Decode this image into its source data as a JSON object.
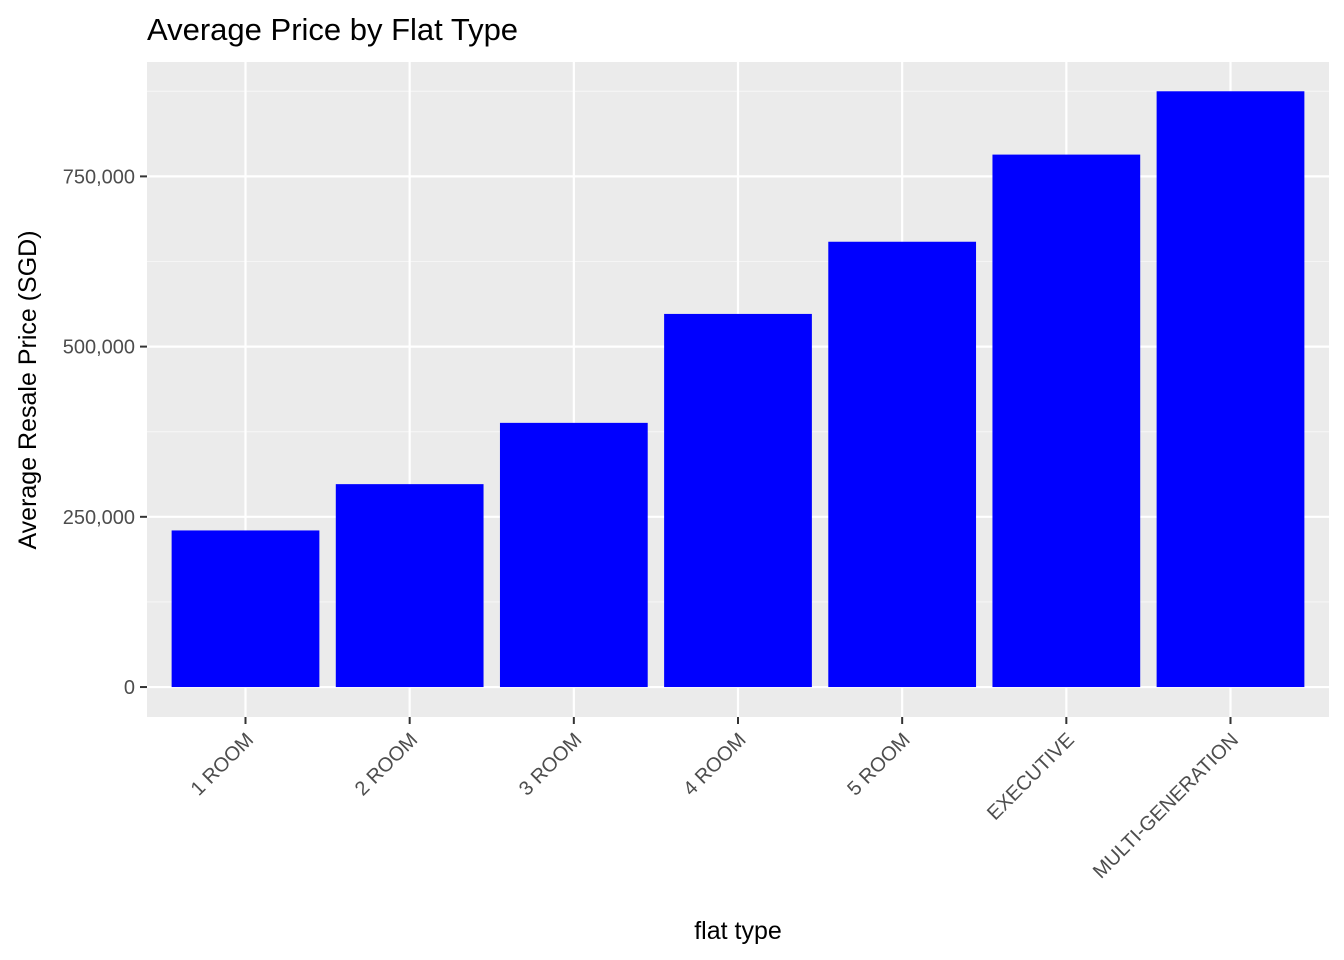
{
  "chart_data": {
    "type": "bar",
    "title": "Average Price by Flat Type",
    "xlabel": "flat type",
    "ylabel": "Average Resale Price (SGD)",
    "categories": [
      "1 ROOM",
      "2 ROOM",
      "3 ROOM",
      "4 ROOM",
      "5 ROOM",
      "EXECUTIVE",
      "MULTI-GENERATION"
    ],
    "values": [
      230000,
      298000,
      388000,
      548000,
      654000,
      782000,
      875000
    ],
    "ylim": [
      -44000,
      918000
    ],
    "yticks": [
      0,
      250000,
      500000,
      750000
    ],
    "ytick_labels": [
      "0",
      "250,000",
      "500,000",
      "750,000"
    ],
    "grid": true,
    "x_tick_rotation_deg": 45,
    "colors": {
      "bar": "#0000ff",
      "panel_background": "#ebebeb",
      "grid_major": "#ffffff",
      "grid_minor": "#f5f5f5",
      "tick_text": "#4d4d4d",
      "tick_mark": "#333333"
    }
  }
}
